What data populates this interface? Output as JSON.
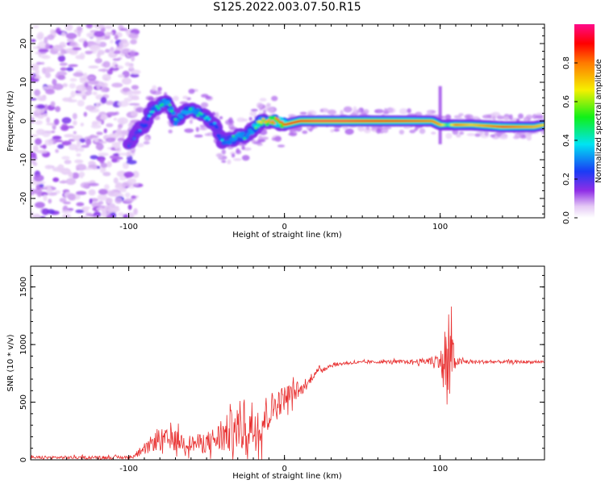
{
  "figure": {
    "title": "S125.2022.003.07.50.R15"
  },
  "chart_data": [
    {
      "type": "heatmap",
      "title": "S125.2022.003.07.50.R15",
      "xlabel": "Height of straight line (km)",
      "ylabel": "Frequency (Hz)",
      "xlim": [
        -163,
        167
      ],
      "ylim": [
        -25,
        25
      ],
      "xticks": [
        -100,
        0,
        100
      ],
      "yticks": [
        -20,
        -10,
        0,
        10,
        20
      ],
      "grid": false,
      "colorbar": {
        "label": "Normalized spectral amplitude",
        "range": [
          0,
          1
        ],
        "ticks": [
          0.0,
          0.2,
          0.4,
          0.6,
          0.8
        ],
        "colormap": "rainbow (white → purple → blue → cyan → green → yellow → orange → red)"
      },
      "frequency_trace": {
        "x": [
          -100,
          -95,
          -90,
          -85,
          -80,
          -75,
          -70,
          -65,
          -60,
          -55,
          -50,
          -45,
          -40,
          -35,
          -30,
          -25,
          -20,
          -15,
          -10,
          -5,
          0,
          10,
          20,
          40,
          60,
          80,
          95,
          100,
          105,
          110,
          120,
          140,
          160,
          167
        ],
        "y": [
          -6,
          -3,
          -1,
          3,
          4,
          5,
          0,
          2,
          3,
          2,
          1,
          -1,
          -5,
          -5,
          -4,
          -4,
          -2,
          0,
          0,
          0,
          -1,
          0,
          0,
          0,
          0,
          0,
          0,
          -1,
          -1,
          -1,
          -1,
          -1.5,
          -1.5,
          -1
        ],
        "amplitude": [
          0.25,
          0.3,
          0.35,
          0.4,
          0.45,
          0.5,
          0.45,
          0.5,
          0.5,
          0.45,
          0.4,
          0.35,
          0.4,
          0.45,
          0.5,
          0.45,
          0.5,
          0.7,
          0.75,
          0.8,
          0.85,
          0.9,
          0.95,
          0.95,
          0.9,
          0.85,
          0.8,
          0.75,
          0.5,
          0.8,
          0.7,
          0.85,
          0.75,
          0.7
        ]
      },
      "noise_region": {
        "x_range": [
          -163,
          -100
        ],
        "y_range": [
          -25,
          25
        ],
        "amplitude": 0.15
      }
    },
    {
      "type": "line",
      "xlabel": "Height of straight line (km)",
      "ylabel": "SNR (10 * v/v)",
      "xlim": [
        -163,
        167
      ],
      "ylim": [
        0,
        1680
      ],
      "xticks": [
        -100,
        0,
        100
      ],
      "yticks": [
        0,
        500,
        1000,
        1500
      ],
      "grid": false,
      "color": "#e83030",
      "envelope": {
        "x": [
          -163,
          -100,
          -95,
          -90,
          -85,
          -80,
          -70,
          -60,
          -50,
          -40,
          -30,
          -25,
          -20,
          -15,
          -10,
          -5,
          0,
          5,
          10,
          15,
          20,
          30,
          40,
          60,
          80,
          90,
          95,
          100,
          104,
          106,
          107,
          108,
          110,
          120,
          140,
          167
        ],
        "mean": [
          20,
          20,
          40,
          80,
          150,
          170,
          170,
          140,
          150,
          200,
          280,
          300,
          300,
          330,
          420,
          480,
          540,
          580,
          600,
          660,
          760,
          820,
          840,
          850,
          850,
          855,
          860,
          870,
          700,
          900,
          1000,
          850,
          850,
          850,
          850,
          850
        ],
        "amp": [
          15,
          15,
          25,
          40,
          80,
          110,
          100,
          80,
          100,
          160,
          250,
          270,
          270,
          230,
          180,
          150,
          120,
          100,
          60,
          40,
          30,
          20,
          15,
          15,
          20,
          30,
          50,
          80,
          450,
          650,
          500,
          250,
          40,
          20,
          15,
          15
        ]
      }
    }
  ]
}
